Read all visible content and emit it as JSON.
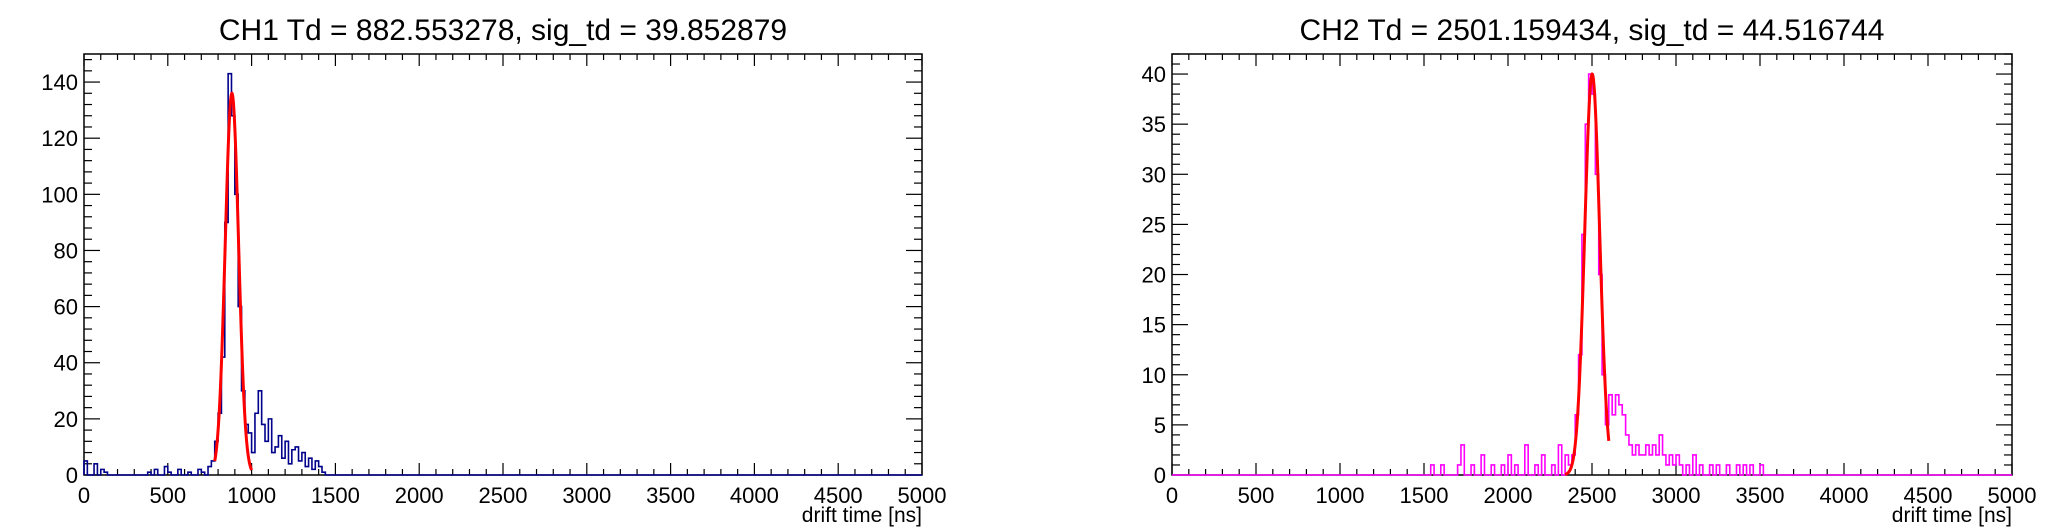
{
  "chart_data": [
    {
      "type": "histogram",
      "title": "CH1 Td = 882.553278, sig_td = 39.852879",
      "xlabel": "drift time [ns]",
      "ylabel": "",
      "xlim": [
        0,
        5000
      ],
      "ylim": [
        0,
        150
      ],
      "x_ticks": [
        0,
        500,
        1000,
        1500,
        2000,
        2500,
        3000,
        3500,
        4000,
        4500,
        5000
      ],
      "y_ticks": [
        0,
        20,
        40,
        60,
        80,
        100,
        120,
        140
      ],
      "bin_width": 20,
      "grid": false,
      "legend": "none",
      "histogram": {
        "color": "#00008b",
        "bins": [
          [
            0,
            5
          ],
          [
            60,
            4
          ],
          [
            100,
            2
          ],
          [
            120,
            1
          ],
          [
            380,
            1
          ],
          [
            420,
            2
          ],
          [
            480,
            3
          ],
          [
            500,
            1
          ],
          [
            560,
            2
          ],
          [
            620,
            1
          ],
          [
            680,
            2
          ],
          [
            700,
            1
          ],
          [
            740,
            3
          ],
          [
            760,
            5
          ],
          [
            780,
            12
          ],
          [
            800,
            22
          ],
          [
            820,
            42
          ],
          [
            840,
            90
          ],
          [
            860,
            143
          ],
          [
            880,
            128
          ],
          [
            900,
            100
          ],
          [
            920,
            60
          ],
          [
            940,
            30
          ],
          [
            960,
            18
          ],
          [
            980,
            15
          ],
          [
            1000,
            8
          ],
          [
            1020,
            22
          ],
          [
            1040,
            30
          ],
          [
            1060,
            18
          ],
          [
            1080,
            12
          ],
          [
            1100,
            20
          ],
          [
            1120,
            8
          ],
          [
            1140,
            10
          ],
          [
            1160,
            14
          ],
          [
            1180,
            6
          ],
          [
            1200,
            12
          ],
          [
            1220,
            4
          ],
          [
            1240,
            9
          ],
          [
            1260,
            10
          ],
          [
            1280,
            5
          ],
          [
            1300,
            8
          ],
          [
            1320,
            3
          ],
          [
            1340,
            6
          ],
          [
            1360,
            2
          ],
          [
            1380,
            5
          ],
          [
            1400,
            3
          ],
          [
            1420,
            1
          ]
        ]
      },
      "fit": {
        "type": "gaussian",
        "color": "#ff0000",
        "amplitude": 136,
        "mean": 882.553278,
        "sigma": 39.852879,
        "range": [
          780,
          1000
        ]
      }
    },
    {
      "type": "histogram",
      "title": "CH2 Td = 2501.159434, sig_td = 44.516744",
      "xlabel": "drift time [ns]",
      "ylabel": "",
      "xlim": [
        0,
        5000
      ],
      "ylim": [
        0,
        42
      ],
      "x_ticks": [
        0,
        500,
        1000,
        1500,
        2000,
        2500,
        3000,
        3500,
        4000,
        4500,
        5000
      ],
      "y_ticks": [
        0,
        5,
        10,
        15,
        20,
        25,
        30,
        35,
        40
      ],
      "bin_width": 20,
      "grid": false,
      "legend": "none",
      "histogram": {
        "color": "#ff00ff",
        "bins": [
          [
            1540,
            1
          ],
          [
            1600,
            1
          ],
          [
            1700,
            1
          ],
          [
            1720,
            3
          ],
          [
            1780,
            1
          ],
          [
            1840,
            2
          ],
          [
            1900,
            1
          ],
          [
            1960,
            1
          ],
          [
            2000,
            2
          ],
          [
            2040,
            1
          ],
          [
            2100,
            3
          ],
          [
            2160,
            1
          ],
          [
            2200,
            2
          ],
          [
            2260,
            1
          ],
          [
            2300,
            3
          ],
          [
            2340,
            2
          ],
          [
            2360,
            1
          ],
          [
            2380,
            2
          ],
          [
            2400,
            6
          ],
          [
            2420,
            12
          ],
          [
            2440,
            24
          ],
          [
            2460,
            35
          ],
          [
            2480,
            40
          ],
          [
            2500,
            38
          ],
          [
            2520,
            30
          ],
          [
            2540,
            20
          ],
          [
            2560,
            10
          ],
          [
            2580,
            5
          ],
          [
            2600,
            8
          ],
          [
            2620,
            6
          ],
          [
            2640,
            8
          ],
          [
            2660,
            7
          ],
          [
            2680,
            6
          ],
          [
            2700,
            4
          ],
          [
            2720,
            3
          ],
          [
            2740,
            2
          ],
          [
            2760,
            3
          ],
          [
            2780,
            2
          ],
          [
            2800,
            2
          ],
          [
            2820,
            3
          ],
          [
            2840,
            2
          ],
          [
            2860,
            3
          ],
          [
            2880,
            2
          ],
          [
            2900,
            4
          ],
          [
            2920,
            2
          ],
          [
            2940,
            1
          ],
          [
            2960,
            2
          ],
          [
            2980,
            1
          ],
          [
            3000,
            2
          ],
          [
            3020,
            1
          ],
          [
            3060,
            1
          ],
          [
            3100,
            2
          ],
          [
            3140,
            1
          ],
          [
            3200,
            1
          ],
          [
            3240,
            1
          ],
          [
            3300,
            1
          ],
          [
            3360,
            1
          ],
          [
            3400,
            1
          ],
          [
            3440,
            1
          ],
          [
            3500,
            1
          ]
        ]
      },
      "fit": {
        "type": "gaussian",
        "color": "#ff0000",
        "amplitude": 40,
        "mean": 2501.159434,
        "sigma": 44.516744,
        "range": [
          2340,
          2600
        ]
      }
    }
  ]
}
